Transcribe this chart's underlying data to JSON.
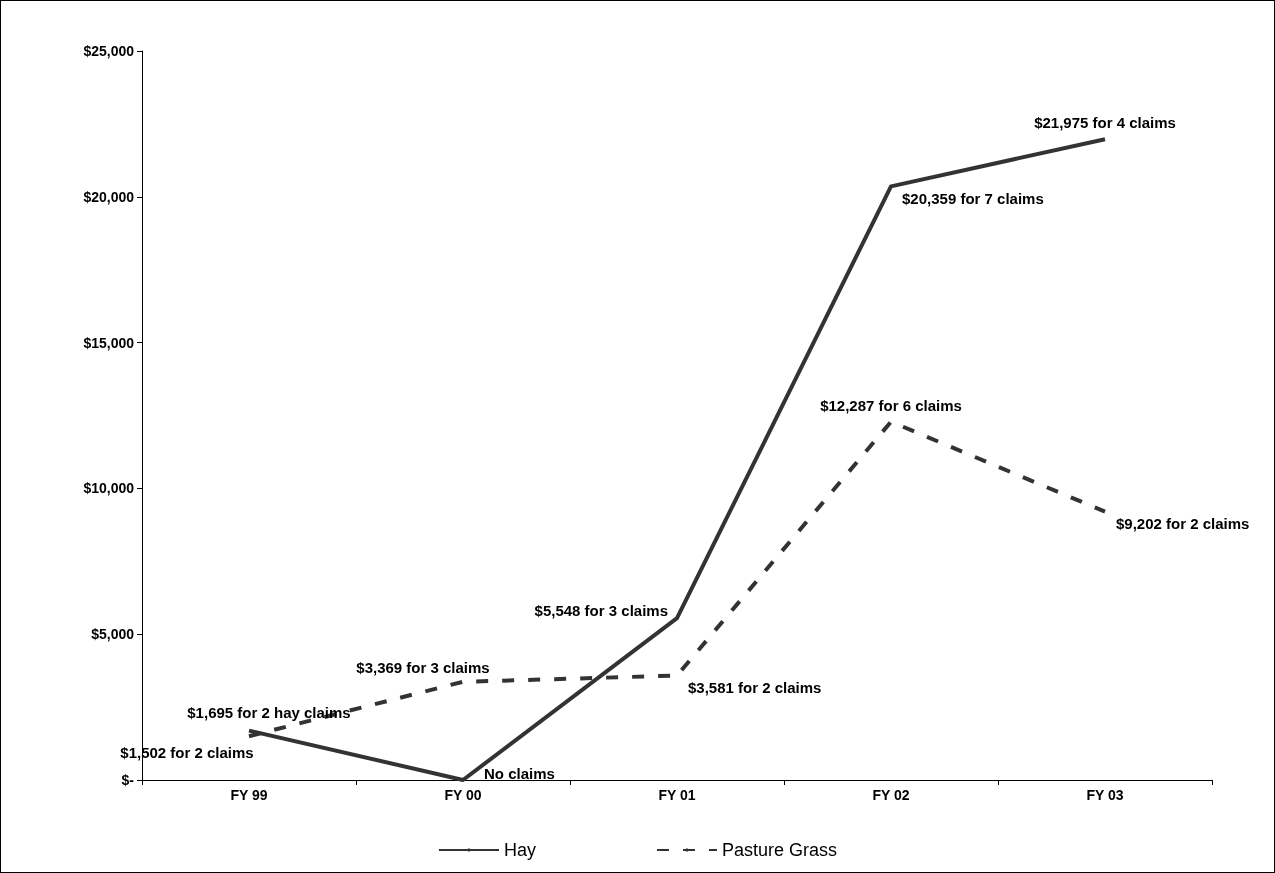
{
  "chart_data": {
    "type": "line",
    "categories": [
      "FY 99",
      "FY 00",
      "FY 01",
      "FY 02",
      "FY 03"
    ],
    "series": [
      {
        "name": "Hay",
        "color": "#333333",
        "line_style": "solid",
        "values": [
          1695,
          0,
          5548,
          20359,
          21975
        ],
        "value_labels": [
          "$1,695 for 2 hay claims",
          "No claims",
          "$5,548 for 3 claims",
          "$20,359 for 7 claims",
          "$21,975 for 4 claims"
        ]
      },
      {
        "name": "Pasture Grass",
        "color": "#333333",
        "line_style": "dashed",
        "values": [
          1502,
          3369,
          3581,
          12287,
          9202
        ],
        "value_labels": [
          "$1,502 for 2 claims",
          "$3,369 for 3 claims",
          "$3,581 for 2 claims",
          "$12,287 for 6 claims",
          "$9,202 for 2 claims"
        ]
      }
    ],
    "ylim": [
      0,
      25000
    ],
    "yticks": [
      {
        "value": 0,
        "label": "$-"
      },
      {
        "value": 5000,
        "label": "$5,000"
      },
      {
        "value": 10000,
        "label": "$10,000"
      },
      {
        "value": 15000,
        "label": "$15,000"
      },
      {
        "value": 20000,
        "label": "$20,000"
      },
      {
        "value": 25000,
        "label": "$25,000"
      }
    ],
    "grid": false,
    "legend": "bottom",
    "marker": "none"
  }
}
